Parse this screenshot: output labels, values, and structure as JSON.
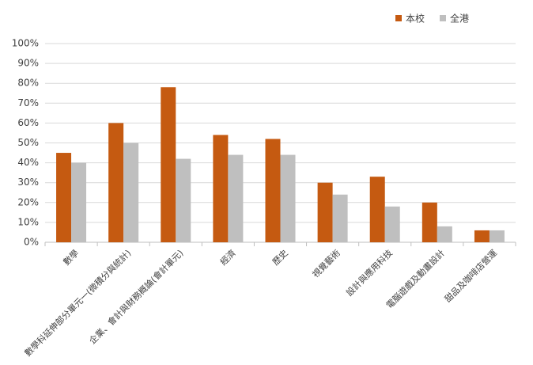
{
  "chart_data": {
    "type": "bar",
    "categories": [
      "數學",
      "數學科延伸部分單元一(微積分與統計)",
      "企業、會計與財務概論(會計單元)",
      "經濟",
      "歷史",
      "視覺藝術",
      "設計與應用科技",
      "電腦遊戲及動畫設計",
      "甜品及咖啡店營運"
    ],
    "series": [
      {
        "name": "本校",
        "color": "#c55a11",
        "values": [
          45,
          60,
          78,
          54,
          52,
          30,
          33,
          20,
          6
        ]
      },
      {
        "name": "全港",
        "color": "#bfbfbf",
        "values": [
          40,
          50,
          42,
          44,
          44,
          24,
          18,
          8,
          6
        ]
      }
    ],
    "ylim": [
      0,
      100
    ],
    "yticks": [
      {
        "value": 0,
        "label": "0%"
      },
      {
        "value": 10,
        "label": "10%"
      },
      {
        "value": 20,
        "label": "20%"
      },
      {
        "value": 30,
        "label": "30%"
      },
      {
        "value": 40,
        "label": "40%"
      },
      {
        "value": 50,
        "label": "50%"
      },
      {
        "value": 60,
        "label": "60%"
      },
      {
        "value": 70,
        "label": "70%"
      },
      {
        "value": 80,
        "label": "80%"
      },
      {
        "value": 90,
        "label": "90%"
      },
      {
        "value": 100,
        "label": "100%"
      }
    ],
    "grid": true,
    "legend": "top-right"
  }
}
